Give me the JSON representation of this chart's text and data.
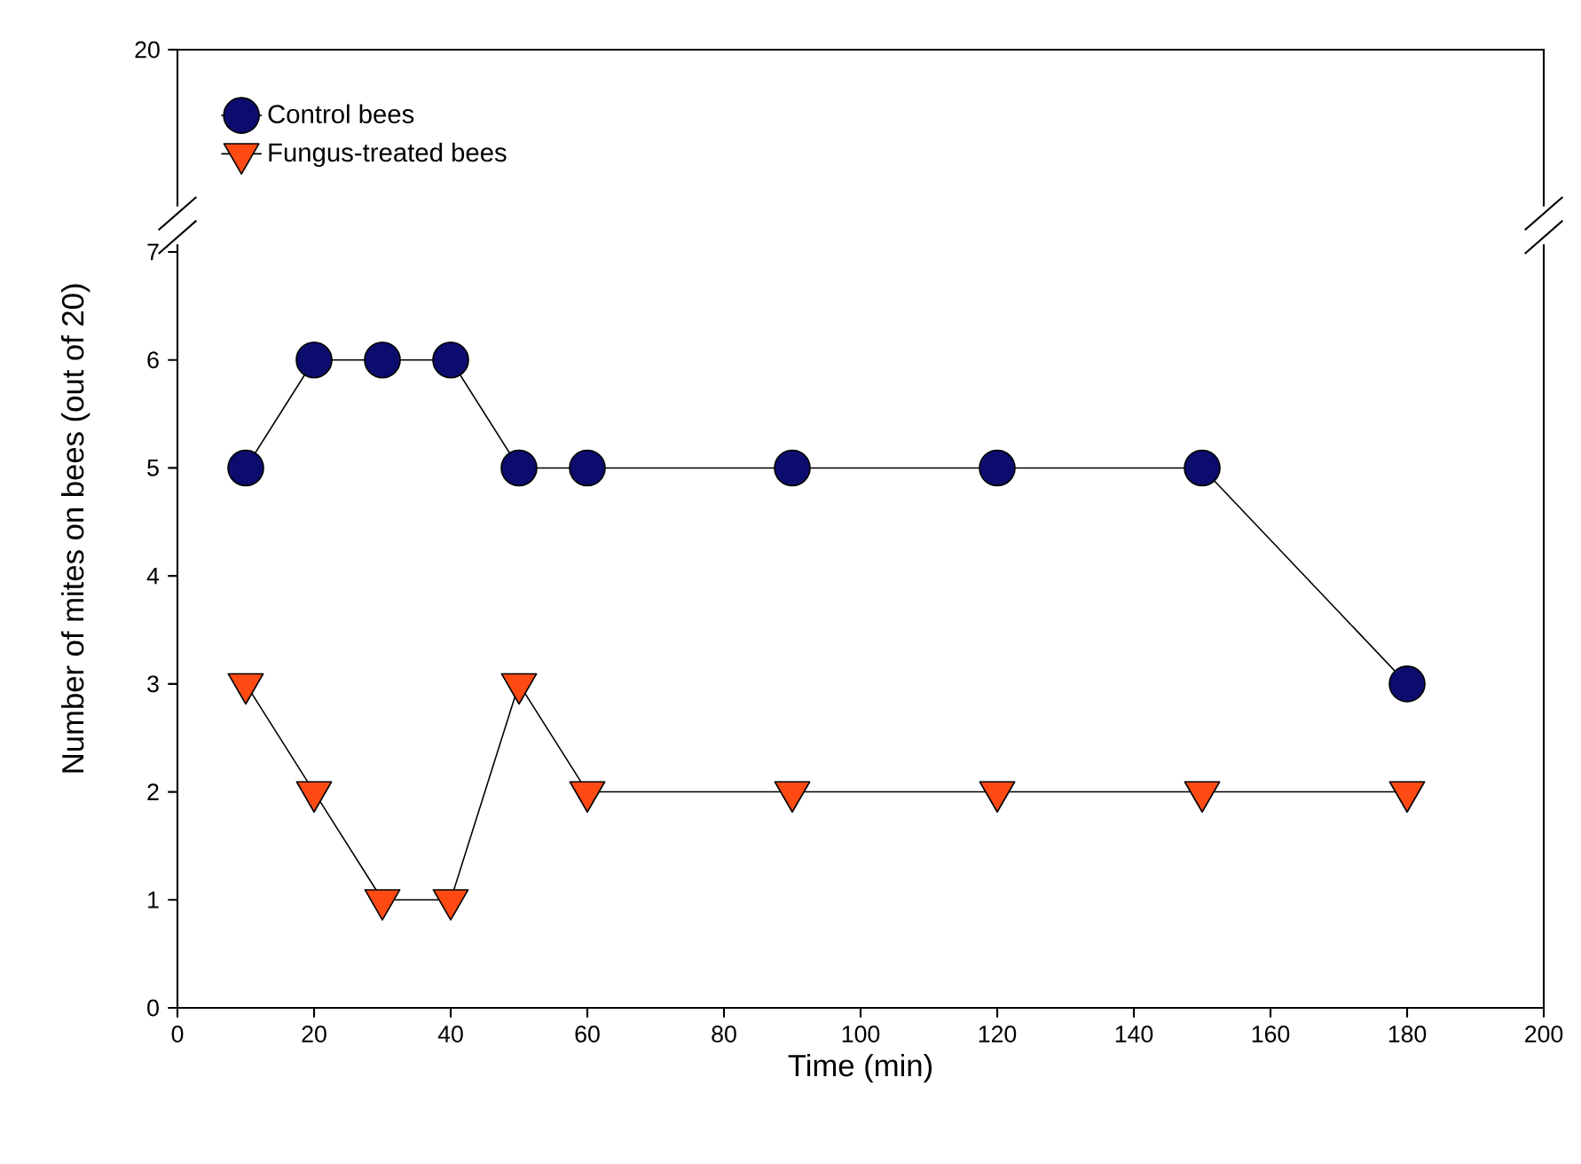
{
  "chart_data": {
    "type": "line",
    "xlabel": "Time (min)",
    "ylabel": "Number of mites on bees (out of 20)",
    "xlim": [
      0,
      200
    ],
    "ylim": [
      0,
      7
    ],
    "xticks": [
      0,
      20,
      40,
      60,
      80,
      100,
      120,
      140,
      160,
      180,
      200
    ],
    "yticks": [
      0,
      1,
      2,
      3,
      4,
      5,
      6,
      7
    ],
    "grid": false,
    "legend": "top left",
    "line_style": "solid",
    "annotations": [
      "20"
    ],
    "x": [
      10,
      20,
      30,
      40,
      50,
      60,
      90,
      120,
      150,
      180
    ],
    "series": [
      {
        "name": "Control bees",
        "color": "#0c0c6e",
        "marker": "circle",
        "values": [
          5,
          6,
          6,
          6,
          5,
          5,
          5,
          5,
          5,
          3
        ]
      },
      {
        "name": "Fungus-treated bees",
        "color": "#ff4a14",
        "marker": "triangle",
        "values": [
          3,
          2,
          1,
          1,
          3,
          2,
          2,
          2,
          2,
          2
        ]
      }
    ]
  }
}
